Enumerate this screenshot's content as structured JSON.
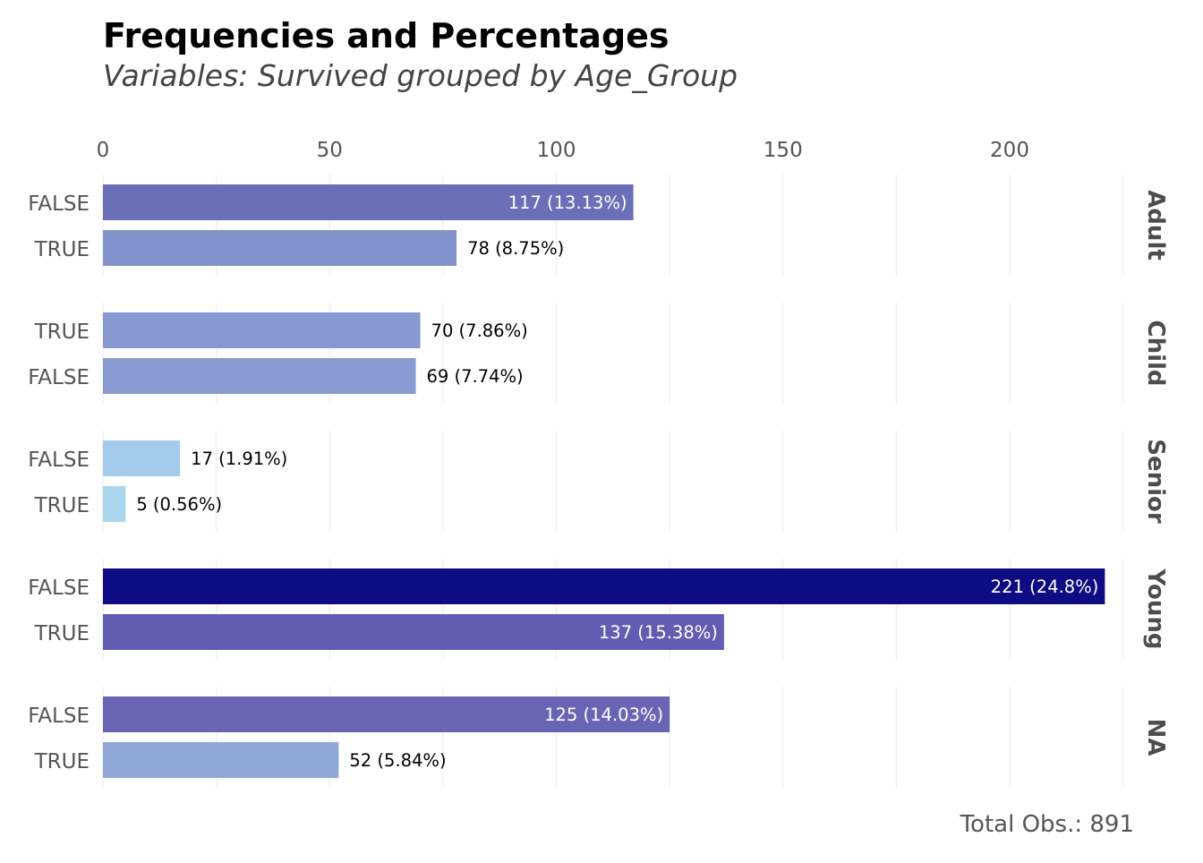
{
  "chart_data": {
    "type": "bar",
    "orientation": "horizontal",
    "title": "Frequencies and Percentages",
    "subtitle": "Variables: Survived grouped by Age_Group",
    "caption": "Total Obs.: 891",
    "xlim": [
      0,
      225
    ],
    "x_ticks": [
      0,
      50,
      100,
      150,
      200
    ],
    "x_tick_labels": [
      "0",
      "50",
      "100",
      "150",
      "200"
    ],
    "grid": true,
    "facets": [
      {
        "name": "Adult",
        "bars": [
          {
            "category": "FALSE",
            "value": 117,
            "label": "117 (13.13%)",
            "color": "#6b6fb8",
            "label_inside": true
          },
          {
            "category": "TRUE",
            "value": 78,
            "label": "78 (8.75%)",
            "color": "#8192cc",
            "label_inside": false
          }
        ]
      },
      {
        "name": "Child",
        "bars": [
          {
            "category": "TRUE",
            "value": 70,
            "label": "70 (7.86%)",
            "color": "#8898d0",
            "label_inside": false
          },
          {
            "category": "FALSE",
            "value": 69,
            "label": "69 (7.74%)",
            "color": "#8999d2",
            "label_inside": false
          }
        ]
      },
      {
        "name": "Senior",
        "bars": [
          {
            "category": "FALSE",
            "value": 17,
            "label": "17 (1.91%)",
            "color": "#a4cbeb",
            "label_inside": false
          },
          {
            "category": "TRUE",
            "value": 5,
            "label": "5 (0.56%)",
            "color": "#a9d5ef",
            "label_inside": false
          }
        ]
      },
      {
        "name": "Young",
        "bars": [
          {
            "category": "FALSE",
            "value": 221,
            "label": "221 (24.8%)",
            "color": "#0d0c82",
            "label_inside": true
          },
          {
            "category": "TRUE",
            "value": 137,
            "label": "137 (15.38%)",
            "color": "#615db0",
            "label_inside": true
          }
        ]
      },
      {
        "name": "NA",
        "bars": [
          {
            "category": "FALSE",
            "value": 125,
            "label": "125 (14.03%)",
            "color": "#6866b4",
            "label_inside": true
          },
          {
            "category": "TRUE",
            "value": 52,
            "label": "52 (5.84%)",
            "color": "#8fa8d8",
            "label_inside": false
          }
        ]
      }
    ]
  }
}
